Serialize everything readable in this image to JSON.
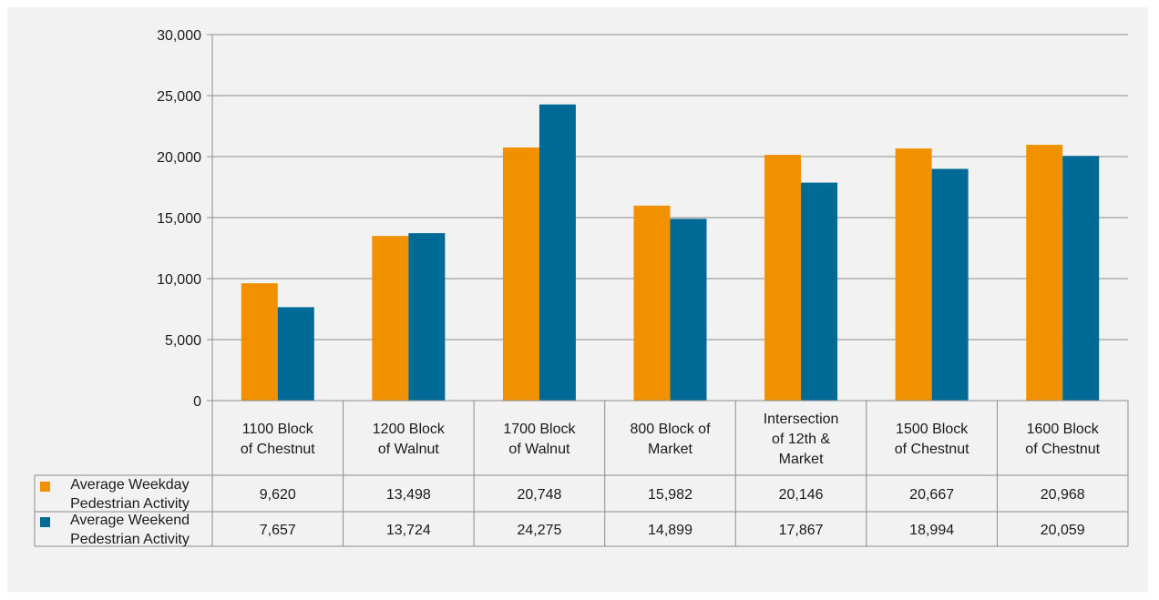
{
  "chart_data": {
    "type": "bar",
    "categories": [
      "1100 Block of Chestnut",
      "1200 Block of Walnut",
      "1700 Block of Walnut",
      "800 Block of Market",
      "Intersection of 12th & Market",
      "1500 Block of Chestnut",
      "1600 Block of Chestnut"
    ],
    "category_lines": [
      [
        "1100 Block",
        "of Chestnut"
      ],
      [
        "1200 Block",
        "of Walnut"
      ],
      [
        "1700 Block",
        "of Walnut"
      ],
      [
        "800 Block of",
        "Market"
      ],
      [
        "Intersection",
        "of 12th &",
        "Market"
      ],
      [
        "1500 Block",
        "of Chestnut"
      ],
      [
        "1600 Block",
        "of Chestnut"
      ]
    ],
    "series": [
      {
        "name": "Average Weekday Pedestrian Activity",
        "name_lines": [
          "Average Weekday",
          "Pedestrian Activity"
        ],
        "color": "#f29100",
        "values": [
          9620,
          13498,
          20748,
          15982,
          20146,
          20667,
          20968
        ],
        "labels": [
          "9,620",
          "13,498",
          "20,748",
          "15,982",
          "20,146",
          "20,667",
          "20,968"
        ]
      },
      {
        "name": "Average Weekend Pedestrian Activity",
        "name_lines": [
          "Average Weekend",
          "Pedestrian Activity"
        ],
        "color": "#006a96",
        "values": [
          7657,
          13724,
          24275,
          14899,
          17867,
          18994,
          20059
        ],
        "labels": [
          "7,657",
          "13,724",
          "24,275",
          "14,899",
          "17,867",
          "18,994",
          "20,059"
        ]
      }
    ],
    "ylim": [
      0,
      30000
    ],
    "yticks": [
      0,
      5000,
      10000,
      15000,
      20000,
      25000,
      30000
    ],
    "ytick_labels": [
      "0",
      "5,000",
      "10,000",
      "15,000",
      "20,000",
      "25,000",
      "30,000"
    ],
    "grid": true,
    "legend": "data-table",
    "xlabel": "",
    "ylabel": "",
    "title": ""
  }
}
